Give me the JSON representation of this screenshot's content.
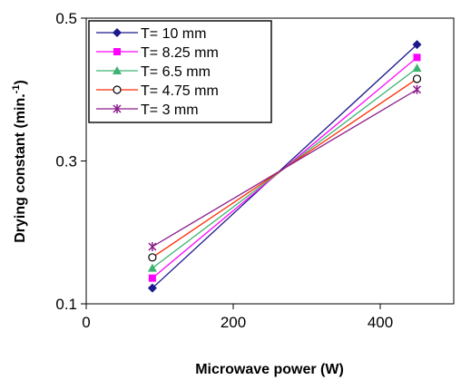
{
  "chart_data": {
    "type": "line",
    "xlabel": "Microwave power (W)",
    "ylabel": "Drying constant (min.",
    "ylabel_superscript": "-1",
    "ylabel_suffix": ")",
    "xlim": [
      0,
      500
    ],
    "ylim": [
      0.1,
      0.5
    ],
    "xticks": [
      0,
      200,
      400
    ],
    "yticks": [
      0.1,
      0.3,
      0.5
    ],
    "xtick_labels": [
      "0",
      "200",
      "400"
    ],
    "ytick_labels": [
      "0.1",
      "0.3",
      "0.5"
    ],
    "grid": false,
    "legend_position": "top-left",
    "x": [
      90,
      450
    ],
    "series": [
      {
        "name": "T= 10 mm",
        "values": [
          0.122,
          0.463
        ],
        "color": "#1a1a8c",
        "marker": "diamond"
      },
      {
        "name": "T= 8.25 mm",
        "values": [
          0.136,
          0.445
        ],
        "color": "#ff00ff",
        "marker": "square"
      },
      {
        "name": "T= 6.5 mm",
        "values": [
          0.15,
          0.43
        ],
        "color": "#3cb371",
        "marker": "triangle"
      },
      {
        "name": "T= 4.75 mm",
        "values": [
          0.165,
          0.415
        ],
        "color": "#ff2a00",
        "marker": "circle"
      },
      {
        "name": "T= 3 mm",
        "values": [
          0.18,
          0.4
        ],
        "color": "#8b1a8b",
        "marker": "asterisk"
      }
    ]
  }
}
